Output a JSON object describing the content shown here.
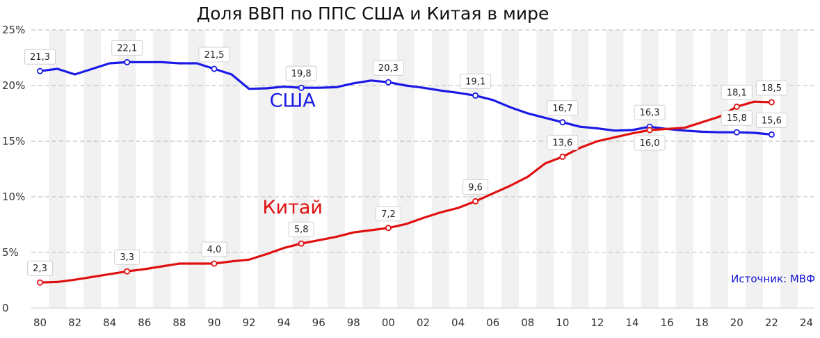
{
  "chart_data": {
    "type": "line",
    "title": "Доля ВВП по ППС США и Китая в мире",
    "source": "Источник: МВФ",
    "ylim": [
      0,
      25
    ],
    "xlim": [
      1979.5,
      2024.5
    ],
    "y_ticks": [
      {
        "value": 0,
        "label": "0"
      },
      {
        "value": 5,
        "label": "5%"
      },
      {
        "value": 10,
        "label": "10%"
      },
      {
        "value": 15,
        "label": "15%"
      },
      {
        "value": 20,
        "label": "20%"
      },
      {
        "value": 25,
        "label": "25%"
      }
    ],
    "x_ticks": [
      {
        "value": 1980,
        "label": "80"
      },
      {
        "value": 1982,
        "label": "82"
      },
      {
        "value": 1984,
        "label": "84"
      },
      {
        "value": 1986,
        "label": "86"
      },
      {
        "value": 1988,
        "label": "88"
      },
      {
        "value": 1990,
        "label": "90"
      },
      {
        "value": 1992,
        "label": "92"
      },
      {
        "value": 1994,
        "label": "94"
      },
      {
        "value": 1996,
        "label": "96"
      },
      {
        "value": 1998,
        "label": "98"
      },
      {
        "value": 2000,
        "label": "00"
      },
      {
        "value": 2002,
        "label": "02"
      },
      {
        "value": 2004,
        "label": "04"
      },
      {
        "value": 2006,
        "label": "06"
      },
      {
        "value": 2008,
        "label": "08"
      },
      {
        "value": 2010,
        "label": "10"
      },
      {
        "value": 2012,
        "label": "12"
      },
      {
        "value": 2014,
        "label": "14"
      },
      {
        "value": 2016,
        "label": "16"
      },
      {
        "value": 2018,
        "label": "18"
      },
      {
        "value": 2020,
        "label": "20"
      },
      {
        "value": 2022,
        "label": "22"
      },
      {
        "value": 2024,
        "label": "24"
      }
    ],
    "grid": {
      "horizontal": true,
      "style": "dashed",
      "alternating_year_bands": true
    },
    "series": [
      {
        "name": "США",
        "color": "#1a1ae6",
        "label_position": "above",
        "x": [
          1980,
          1981,
          1982,
          1983,
          1984,
          1985,
          1986,
          1987,
          1988,
          1989,
          1990,
          1991,
          1992,
          1993,
          1994,
          1995,
          1996,
          1997,
          1998,
          1999,
          2000,
          2001,
          2002,
          2003,
          2004,
          2005,
          2006,
          2007,
          2008,
          2009,
          2010,
          2011,
          2012,
          2013,
          2014,
          2015,
          2016,
          2017,
          2018,
          2019,
          2020,
          2021,
          2022
        ],
        "y": [
          21.3,
          21.5,
          21.0,
          21.5,
          22.0,
          22.1,
          22.1,
          22.1,
          22.0,
          22.0,
          21.5,
          21.0,
          19.7,
          19.75,
          19.9,
          19.8,
          19.8,
          19.85,
          20.2,
          20.45,
          20.3,
          20.0,
          19.8,
          19.55,
          19.35,
          19.1,
          18.7,
          18.05,
          17.5,
          17.1,
          16.7,
          16.3,
          16.15,
          15.95,
          16.0,
          16.3,
          16.1,
          15.95,
          15.85,
          15.8,
          15.8,
          15.75,
          15.6
        ],
        "points": [
          {
            "x": 1980,
            "y": 21.3,
            "label": "21,3"
          },
          {
            "x": 1985,
            "y": 22.1,
            "label": "22,1"
          },
          {
            "x": 1990,
            "y": 21.5,
            "label": "21,5"
          },
          {
            "x": 1995,
            "y": 19.8,
            "label": "19,8"
          },
          {
            "x": 2000,
            "y": 20.3,
            "label": "20,3"
          },
          {
            "x": 2005,
            "y": 19.1,
            "label": "19,1"
          },
          {
            "x": 2010,
            "y": 16.7,
            "label": "16,7"
          },
          {
            "x": 2015,
            "y": 16.3,
            "label": "16,3"
          },
          {
            "x": 2020,
            "y": 15.8,
            "label": "15,8"
          },
          {
            "x": 2022,
            "y": 15.6,
            "label": "15,6"
          }
        ]
      },
      {
        "name": "Китай",
        "color": "#e01010",
        "label_position": "above",
        "x": [
          1980,
          1981,
          1982,
          1983,
          1984,
          1985,
          1986,
          1987,
          1988,
          1989,
          1990,
          1991,
          1992,
          1993,
          1994,
          1995,
          1996,
          1997,
          1998,
          1999,
          2000,
          2001,
          2002,
          2003,
          2004,
          2005,
          2006,
          2007,
          2008,
          2009,
          2010,
          2011,
          2012,
          2013,
          2014,
          2015,
          2016,
          2017,
          2018,
          2019,
          2020,
          2021,
          2022
        ],
        "y": [
          2.3,
          2.35,
          2.55,
          2.8,
          3.05,
          3.3,
          3.5,
          3.75,
          4.0,
          4.0,
          4.0,
          4.2,
          4.35,
          4.85,
          5.4,
          5.8,
          6.1,
          6.4,
          6.8,
          7.0,
          7.2,
          7.55,
          8.1,
          8.6,
          9.0,
          9.6,
          10.3,
          11.0,
          11.8,
          13.0,
          13.6,
          14.4,
          15.0,
          15.35,
          15.7,
          16.0,
          16.1,
          16.2,
          16.7,
          17.2,
          18.1,
          18.55,
          18.5
        ],
        "points": [
          {
            "x": 1980,
            "y": 2.3,
            "label": "2,3"
          },
          {
            "x": 1985,
            "y": 3.3,
            "label": "3,3"
          },
          {
            "x": 1990,
            "y": 4.0,
            "label": "4,0"
          },
          {
            "x": 1995,
            "y": 5.8,
            "label": "5,8"
          },
          {
            "x": 2000,
            "y": 7.2,
            "label": "7,2"
          },
          {
            "x": 2005,
            "y": 9.6,
            "label": "9,6"
          },
          {
            "x": 2010,
            "y": 13.6,
            "label": "13,6"
          },
          {
            "x": 2015,
            "y": 16.0,
            "label": "16,0",
            "label_position": "below"
          },
          {
            "x": 2020,
            "y": 18.1,
            "label": "18,1"
          },
          {
            "x": 2022,
            "y": 18.5,
            "label": "18,5"
          }
        ]
      }
    ],
    "series_labels": [
      {
        "text": "США",
        "series": 0,
        "x": 1994.5,
        "y": 18.1
      },
      {
        "text": "Китай",
        "series": 1,
        "x": 1994.5,
        "y": 8.5
      }
    ]
  }
}
